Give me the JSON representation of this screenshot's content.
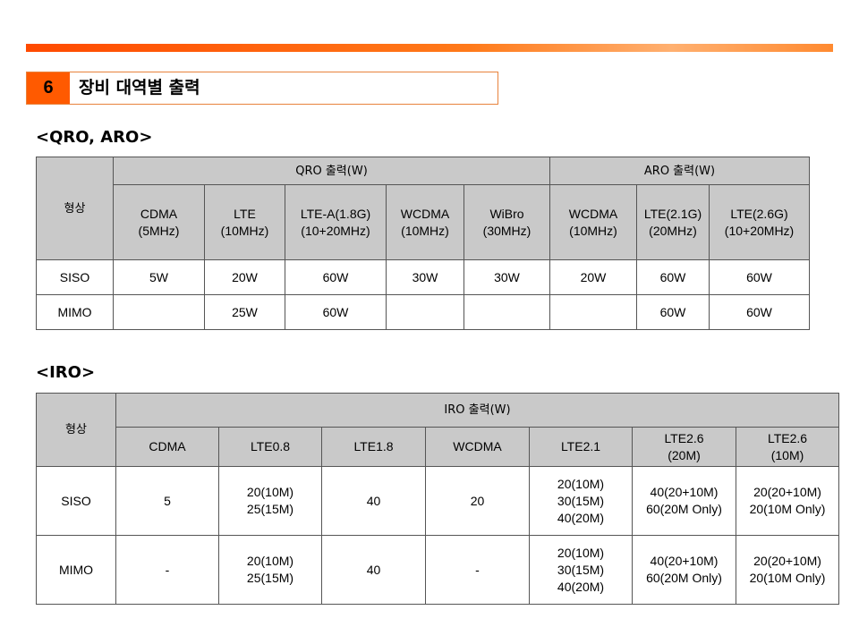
{
  "section": {
    "number": "6",
    "title": "장비 대역별 출력"
  },
  "qro": {
    "heading": "<QRO, ARO>",
    "shape_label": "형상",
    "group1": "QRO 출력(W)",
    "group2": "ARO 출력(W)",
    "columns": [
      [
        "CDMA",
        "(5MHz)"
      ],
      [
        "LTE",
        "(10MHz)"
      ],
      [
        "LTE-A(1.8G)",
        "(10+20MHz)"
      ],
      [
        "WCDMA",
        "(10MHz)"
      ],
      [
        "WiBro",
        "(30MHz)"
      ],
      [
        "WCDMA",
        "(10MHz)"
      ],
      [
        "LTE(2.1G)",
        "(20MHz)"
      ],
      [
        "LTE(2.6G)",
        "(10+20MHz)"
      ]
    ],
    "rows": [
      {
        "label": "SISO",
        "cells": [
          "5W",
          "20W",
          "60W",
          "30W",
          "30W",
          "20W",
          "60W",
          "60W"
        ]
      },
      {
        "label": "MIMO",
        "cells": [
          "",
          "25W",
          "60W",
          "",
          "",
          "",
          "60W",
          "60W"
        ]
      }
    ]
  },
  "iro": {
    "heading": "<IRO>",
    "shape_label": "형상",
    "group": "IRO 출력(W)",
    "columns": [
      [
        "CDMA"
      ],
      [
        "LTE0.8"
      ],
      [
        "LTE1.8"
      ],
      [
        "WCDMA"
      ],
      [
        "LTE2.1"
      ],
      [
        "LTE2.6",
        "(20M)"
      ],
      [
        "LTE2.6",
        "(10M)"
      ]
    ],
    "rows": [
      {
        "label": "SISO",
        "cells": [
          [
            "5"
          ],
          [
            "20(10M)",
            "25(15M)"
          ],
          [
            "40"
          ],
          [
            "20"
          ],
          [
            "20(10M)",
            "30(15M)",
            "40(20M)"
          ],
          [
            "40(20+10M)",
            "60(20M Only)"
          ],
          [
            "20(20+10M)",
            "20(10M Only)"
          ]
        ]
      },
      {
        "label": "MIMO",
        "cells": [
          [
            "-"
          ],
          [
            "20(10M)",
            "25(15M)"
          ],
          [
            "40"
          ],
          [
            "-"
          ],
          [
            "20(10M)",
            "30(15M)",
            "40(20M)"
          ],
          [
            "40(20+10M)",
            "60(20M Only)"
          ],
          [
            "20(20+10M)",
            "20(10M Only)"
          ]
        ]
      }
    ]
  }
}
